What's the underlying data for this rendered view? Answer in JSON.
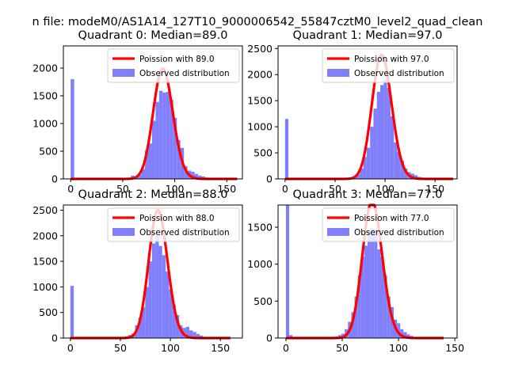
{
  "figure": {
    "suptitle": "n file: modeM0/AS1A14_127T10_9000006542_55847cztM0_level2_quad_clean"
  },
  "colors": {
    "poisson": "#ff0000",
    "observed": "#8080ff",
    "axis": "#000000"
  },
  "chart_data": [
    {
      "type": "bar",
      "title": "Quadrant 0: Median=89.0",
      "xlim": [
        -7,
        165
      ],
      "ylim": [
        0,
        2400
      ],
      "xticks": [
        0,
        50,
        100,
        150
      ],
      "yticks": [
        0,
        500,
        1000,
        1500,
        2000
      ],
      "median": 89,
      "legend": {
        "position": "top-right",
        "poisson_label": "Poission with 89.0",
        "observed_label": "Observed distribution"
      },
      "observed_bins": [
        {
          "x0": 0,
          "x1": 3.4,
          "y": 1800
        },
        {
          "x0": 3.4,
          "x1": 57.8,
          "y": 6
        },
        {
          "x0": 57.8,
          "x1": 61.2,
          "y": 60
        },
        {
          "x0": 61.2,
          "x1": 64.6,
          "y": 40
        },
        {
          "x0": 64.6,
          "x1": 68,
          "y": 80
        },
        {
          "x0": 68,
          "x1": 71.4,
          "y": 180
        },
        {
          "x0": 71.4,
          "x1": 74.8,
          "y": 520
        },
        {
          "x0": 74.8,
          "x1": 78.2,
          "y": 640
        },
        {
          "x0": 78.2,
          "x1": 81.6,
          "y": 1050
        },
        {
          "x0": 81.6,
          "x1": 85,
          "y": 1390
        },
        {
          "x0": 85,
          "x1": 88.4,
          "y": 1590
        },
        {
          "x0": 88.4,
          "x1": 91.8,
          "y": 1560
        },
        {
          "x0": 91.8,
          "x1": 95.2,
          "y": 1570
        },
        {
          "x0": 95.2,
          "x1": 98.6,
          "y": 1430
        },
        {
          "x0": 98.6,
          "x1": 102,
          "y": 1100
        },
        {
          "x0": 102,
          "x1": 105.4,
          "y": 700
        },
        {
          "x0": 105.4,
          "x1": 108.8,
          "y": 560
        },
        {
          "x0": 108.8,
          "x1": 112.2,
          "y": 230
        },
        {
          "x0": 112.2,
          "x1": 115.6,
          "y": 150
        },
        {
          "x0": 115.6,
          "x1": 119,
          "y": 130
        },
        {
          "x0": 119,
          "x1": 122.4,
          "y": 90
        },
        {
          "x0": 122.4,
          "x1": 125.8,
          "y": 60
        },
        {
          "x0": 125.8,
          "x1": 129.2,
          "y": 45
        },
        {
          "x0": 129.2,
          "x1": 132.6,
          "y": 25
        },
        {
          "x0": 132.6,
          "x1": 160,
          "y": 8
        }
      ]
    },
    {
      "type": "bar",
      "title": "Quadrant 1: Median=97.0",
      "xlim": [
        -7,
        172
      ],
      "ylim": [
        0,
        2550
      ],
      "xticks": [
        0,
        50,
        100,
        150
      ],
      "yticks": [
        0,
        500,
        1000,
        1500,
        2000,
        2500
      ],
      "median": 97,
      "legend": {
        "position": "top-right",
        "poisson_label": "Poission with 97.0",
        "observed_label": "Observed distribution"
      },
      "observed_bins": [
        {
          "x0": 0,
          "x1": 3.4,
          "y": 1150
        },
        {
          "x0": 3.4,
          "x1": 64.6,
          "y": 6
        },
        {
          "x0": 64.6,
          "x1": 68,
          "y": 30
        },
        {
          "x0": 68,
          "x1": 71.4,
          "y": 40
        },
        {
          "x0": 71.4,
          "x1": 74.8,
          "y": 90
        },
        {
          "x0": 74.8,
          "x1": 78.2,
          "y": 200
        },
        {
          "x0": 78.2,
          "x1": 81.6,
          "y": 420
        },
        {
          "x0": 81.6,
          "x1": 85,
          "y": 600
        },
        {
          "x0": 85,
          "x1": 88.4,
          "y": 1000
        },
        {
          "x0": 88.4,
          "x1": 91.8,
          "y": 1350
        },
        {
          "x0": 91.8,
          "x1": 95.2,
          "y": 1670
        },
        {
          "x0": 95.2,
          "x1": 98.6,
          "y": 1800
        },
        {
          "x0": 98.6,
          "x1": 102,
          "y": 1900
        },
        {
          "x0": 102,
          "x1": 105.4,
          "y": 1750
        },
        {
          "x0": 105.4,
          "x1": 108.8,
          "y": 1200
        },
        {
          "x0": 108.8,
          "x1": 112.2,
          "y": 700
        },
        {
          "x0": 112.2,
          "x1": 115.6,
          "y": 520
        },
        {
          "x0": 115.6,
          "x1": 119,
          "y": 350
        },
        {
          "x0": 119,
          "x1": 122.4,
          "y": 200
        },
        {
          "x0": 122.4,
          "x1": 125.8,
          "y": 130
        },
        {
          "x0": 125.8,
          "x1": 129.2,
          "y": 100
        },
        {
          "x0": 129.2,
          "x1": 132.6,
          "y": 70
        },
        {
          "x0": 132.6,
          "x1": 136,
          "y": 40
        },
        {
          "x0": 136,
          "x1": 139.4,
          "y": 25
        },
        {
          "x0": 139.4,
          "x1": 168,
          "y": 8
        }
      ]
    },
    {
      "type": "bar",
      "title": "Quadrant 2: Median=88.0",
      "xlim": [
        -7,
        172
      ],
      "ylim": [
        0,
        2600
      ],
      "xticks": [
        0,
        50,
        100,
        150
      ],
      "yticks": [
        0,
        500,
        1000,
        1500,
        2000,
        2500
      ],
      "median": 88,
      "legend": {
        "position": "top-right",
        "poisson_label": "Poission with 88.0",
        "observed_label": "Observed distribution"
      },
      "observed_bins": [
        {
          "x0": 0,
          "x1": 3.4,
          "y": 1020
        },
        {
          "x0": 3.4,
          "x1": 54.4,
          "y": 6
        },
        {
          "x0": 54.4,
          "x1": 57.8,
          "y": 30
        },
        {
          "x0": 57.8,
          "x1": 61.2,
          "y": 60
        },
        {
          "x0": 61.2,
          "x1": 64.6,
          "y": 90
        },
        {
          "x0": 64.6,
          "x1": 68,
          "y": 250
        },
        {
          "x0": 68,
          "x1": 71.4,
          "y": 400
        },
        {
          "x0": 71.4,
          "x1": 74.8,
          "y": 600
        },
        {
          "x0": 74.8,
          "x1": 78.2,
          "y": 1000
        },
        {
          "x0": 78.2,
          "x1": 81.6,
          "y": 1500
        },
        {
          "x0": 81.6,
          "x1": 85,
          "y": 1850
        },
        {
          "x0": 85,
          "x1": 88.4,
          "y": 2000
        },
        {
          "x0": 88.4,
          "x1": 91.8,
          "y": 1800
        },
        {
          "x0": 91.8,
          "x1": 95.2,
          "y": 1620
        },
        {
          "x0": 95.2,
          "x1": 98.6,
          "y": 1300
        },
        {
          "x0": 98.6,
          "x1": 102,
          "y": 950
        },
        {
          "x0": 102,
          "x1": 105.4,
          "y": 650
        },
        {
          "x0": 105.4,
          "x1": 108.8,
          "y": 450
        },
        {
          "x0": 108.8,
          "x1": 112.2,
          "y": 250
        },
        {
          "x0": 112.2,
          "x1": 115.6,
          "y": 200
        },
        {
          "x0": 115.6,
          "x1": 119,
          "y": 220
        },
        {
          "x0": 119,
          "x1": 122.4,
          "y": 150
        },
        {
          "x0": 122.4,
          "x1": 125.8,
          "y": 120
        },
        {
          "x0": 125.8,
          "x1": 129.2,
          "y": 80
        },
        {
          "x0": 129.2,
          "x1": 132.6,
          "y": 50
        },
        {
          "x0": 132.6,
          "x1": 160,
          "y": 10
        }
      ]
    },
    {
      "type": "bar",
      "title": "Quadrant 3: Median=77.0",
      "xlim": [
        -7,
        152
      ],
      "ylim": [
        0,
        1800
      ],
      "xticks": [
        0,
        50,
        100,
        150
      ],
      "yticks": [
        0,
        500,
        1000,
        1500
      ],
      "median": 77,
      "legend": {
        "position": "top-right",
        "poisson_label": "Poission with 77.0",
        "observed_label": "Observed distribution"
      },
      "observed_bins": [
        {
          "x0": 0,
          "x1": 2.9,
          "y": 1800
        },
        {
          "x0": 2.9,
          "x1": 5.8,
          "y": 40
        },
        {
          "x0": 5.8,
          "x1": 43.5,
          "y": 8
        },
        {
          "x0": 43.5,
          "x1": 46.4,
          "y": 20
        },
        {
          "x0": 46.4,
          "x1": 49.3,
          "y": 40
        },
        {
          "x0": 49.3,
          "x1": 52.2,
          "y": 60
        },
        {
          "x0": 52.2,
          "x1": 55.1,
          "y": 120
        },
        {
          "x0": 55.1,
          "x1": 58,
          "y": 220
        },
        {
          "x0": 58,
          "x1": 60.9,
          "y": 350
        },
        {
          "x0": 60.9,
          "x1": 63.8,
          "y": 560
        },
        {
          "x0": 63.8,
          "x1": 66.7,
          "y": 850
        },
        {
          "x0": 66.7,
          "x1": 69.6,
          "y": 1100
        },
        {
          "x0": 69.6,
          "x1": 72.5,
          "y": 1250
        },
        {
          "x0": 72.5,
          "x1": 75.4,
          "y": 1450
        },
        {
          "x0": 75.4,
          "x1": 78.3,
          "y": 1480
        },
        {
          "x0": 78.3,
          "x1": 81.2,
          "y": 1470
        },
        {
          "x0": 81.2,
          "x1": 84.1,
          "y": 1200
        },
        {
          "x0": 84.1,
          "x1": 87,
          "y": 1100
        },
        {
          "x0": 87,
          "x1": 89.9,
          "y": 850
        },
        {
          "x0": 89.9,
          "x1": 92.8,
          "y": 560
        },
        {
          "x0": 92.8,
          "x1": 95.7,
          "y": 420
        },
        {
          "x0": 95.7,
          "x1": 98.6,
          "y": 250
        },
        {
          "x0": 98.6,
          "x1": 101.5,
          "y": 200
        },
        {
          "x0": 101.5,
          "x1": 104.4,
          "y": 120
        },
        {
          "x0": 104.4,
          "x1": 107.3,
          "y": 80
        },
        {
          "x0": 107.3,
          "x1": 110.2,
          "y": 50
        },
        {
          "x0": 110.2,
          "x1": 113.1,
          "y": 30
        },
        {
          "x0": 113.1,
          "x1": 140,
          "y": 8
        }
      ]
    }
  ]
}
